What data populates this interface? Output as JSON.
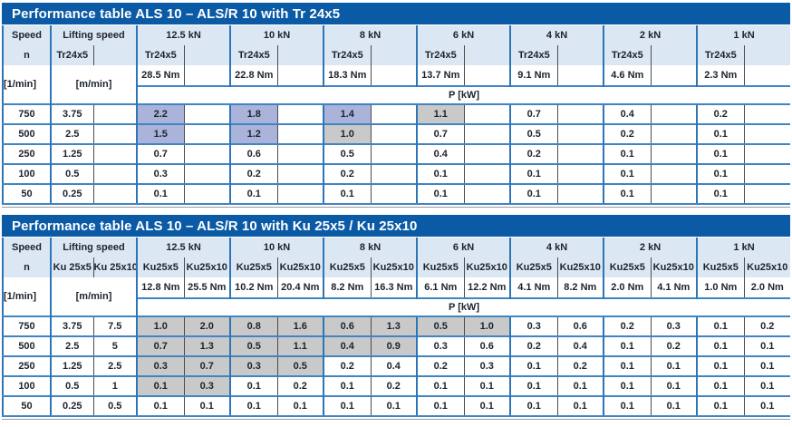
{
  "colors": {
    "title_bar": "#0b5aa5",
    "header_bg": "#dbe8f4",
    "group_border": "#2e75b6",
    "row_line": "#3f85c4",
    "highlight_blue": "#aab4da",
    "highlight_gray": "#c9c9c9",
    "text": "#1d232c"
  },
  "tables": [
    {
      "title": "Performance table ALS 10 – ALS/R 10 with Tr 24x5",
      "speed_label": "Speed",
      "speed_sub": "n",
      "speed_unit": "[1/min]",
      "lifting_label": "Lifting speed",
      "lifting_subs": [
        "Tr24x5",
        ""
      ],
      "lifting_unit": "[m/min]",
      "p_unit": "P [kW]",
      "groups": [
        {
          "load": "12.5 kN",
          "subs": [
            "Tr24x5",
            ""
          ],
          "torques": [
            "28.5 Nm",
            ""
          ]
        },
        {
          "load": "10 kN",
          "subs": [
            "Tr24x5",
            ""
          ],
          "torques": [
            "22.8 Nm",
            ""
          ]
        },
        {
          "load": "8 kN",
          "subs": [
            "Tr24x5",
            ""
          ],
          "torques": [
            "18.3 Nm",
            ""
          ]
        },
        {
          "load": "6 kN",
          "subs": [
            "Tr24x5",
            ""
          ],
          "torques": [
            "13.7 Nm",
            ""
          ]
        },
        {
          "load": "4 kN",
          "subs": [
            "Tr24x5",
            ""
          ],
          "torques": [
            "9.1 Nm",
            ""
          ]
        },
        {
          "load": "2 kN",
          "subs": [
            "Tr24x5",
            ""
          ],
          "torques": [
            "4.6 Nm",
            ""
          ]
        },
        {
          "load": "1 kN",
          "subs": [
            "Tr24x5",
            ""
          ],
          "torques": [
            "2.3 Nm",
            ""
          ]
        }
      ],
      "rows": [
        {
          "speed": "750",
          "lifting": [
            "3.75",
            ""
          ],
          "p": [
            [
              "2.2",
              ""
            ],
            [
              "1.8",
              ""
            ],
            [
              "1.4",
              ""
            ],
            [
              "1.1",
              ""
            ],
            [
              "0.7",
              ""
            ],
            [
              "0.4",
              ""
            ],
            [
              "0.2",
              ""
            ]
          ],
          "hl": [
            [
              "blue",
              ""
            ],
            [
              "blue",
              ""
            ],
            [
              "blue",
              ""
            ],
            [
              "gray",
              ""
            ],
            [
              "",
              ""
            ],
            [
              "",
              ""
            ],
            [
              "",
              ""
            ]
          ]
        },
        {
          "speed": "500",
          "lifting": [
            "2.5",
            ""
          ],
          "p": [
            [
              "1.5",
              ""
            ],
            [
              "1.2",
              ""
            ],
            [
              "1.0",
              ""
            ],
            [
              "0.7",
              ""
            ],
            [
              "0.5",
              ""
            ],
            [
              "0.2",
              ""
            ],
            [
              "0.1",
              ""
            ]
          ],
          "hl": [
            [
              "blue",
              ""
            ],
            [
              "blue",
              ""
            ],
            [
              "gray",
              ""
            ],
            [
              "",
              ""
            ],
            [
              "",
              ""
            ],
            [
              "",
              ""
            ],
            [
              "",
              ""
            ]
          ]
        },
        {
          "speed": "250",
          "lifting": [
            "1.25",
            ""
          ],
          "p": [
            [
              "0.7",
              ""
            ],
            [
              "0.6",
              ""
            ],
            [
              "0.5",
              ""
            ],
            [
              "0.4",
              ""
            ],
            [
              "0.2",
              ""
            ],
            [
              "0.1",
              ""
            ],
            [
              "0.1",
              ""
            ]
          ],
          "hl": [
            [
              "",
              ""
            ],
            [
              "",
              ""
            ],
            [
              "",
              ""
            ],
            [
              "",
              ""
            ],
            [
              "",
              ""
            ],
            [
              "",
              ""
            ],
            [
              "",
              ""
            ]
          ]
        },
        {
          "speed": "100",
          "lifting": [
            "0.5",
            ""
          ],
          "p": [
            [
              "0.3",
              ""
            ],
            [
              "0.2",
              ""
            ],
            [
              "0.2",
              ""
            ],
            [
              "0.1",
              ""
            ],
            [
              "0.1",
              ""
            ],
            [
              "0.1",
              ""
            ],
            [
              "0.1",
              ""
            ]
          ],
          "hl": [
            [
              "",
              ""
            ],
            [
              "",
              ""
            ],
            [
              "",
              ""
            ],
            [
              "",
              ""
            ],
            [
              "",
              ""
            ],
            [
              "",
              ""
            ],
            [
              "",
              ""
            ]
          ]
        },
        {
          "speed": "50",
          "lifting": [
            "0.25",
            ""
          ],
          "p": [
            [
              "0.1",
              ""
            ],
            [
              "0.1",
              ""
            ],
            [
              "0.1",
              ""
            ],
            [
              "0.1",
              ""
            ],
            [
              "0.1",
              ""
            ],
            [
              "0.1",
              ""
            ],
            [
              "0.1",
              ""
            ]
          ],
          "hl": [
            [
              "",
              ""
            ],
            [
              "",
              ""
            ],
            [
              "",
              ""
            ],
            [
              "",
              ""
            ],
            [
              "",
              ""
            ],
            [
              "",
              ""
            ],
            [
              "",
              ""
            ]
          ]
        }
      ]
    },
    {
      "title": "Performance table ALS 10 – ALS/R 10 with Ku 25x5 / Ku 25x10",
      "speed_label": "Speed",
      "speed_sub": "n",
      "speed_unit": "[1/min]",
      "lifting_label": "Lifting speed",
      "lifting_subs": [
        "Ku 25x5",
        "Ku 25x10"
      ],
      "lifting_unit": "[m/min]",
      "p_unit": "P [kW]",
      "groups": [
        {
          "load": "12.5 kN",
          "subs": [
            "Ku25x5",
            "Ku25x10"
          ],
          "torques": [
            "12.8 Nm",
            "25.5 Nm"
          ]
        },
        {
          "load": "10 kN",
          "subs": [
            "Ku25x5",
            "Ku25x10"
          ],
          "torques": [
            "10.2 Nm",
            "20.4 Nm"
          ]
        },
        {
          "load": "8 kN",
          "subs": [
            "Ku25x5",
            "Ku25x10"
          ],
          "torques": [
            "8.2 Nm",
            "16.3 Nm"
          ]
        },
        {
          "load": "6 kN",
          "subs": [
            "Ku25x5",
            "Ku25x10"
          ],
          "torques": [
            "6.1 Nm",
            "12.2 Nm"
          ]
        },
        {
          "load": "4 kN",
          "subs": [
            "Ku25x5",
            "Ku25x10"
          ],
          "torques": [
            "4.1 Nm",
            "8.2 Nm"
          ]
        },
        {
          "load": "2 kN",
          "subs": [
            "Ku25x5",
            "Ku25x10"
          ],
          "torques": [
            "2.0 Nm",
            "4.1 Nm"
          ]
        },
        {
          "load": "1 kN",
          "subs": [
            "Ku25x5",
            "Ku25x10"
          ],
          "torques": [
            "1.0 Nm",
            "2.0 Nm"
          ]
        }
      ],
      "rows": [
        {
          "speed": "750",
          "lifting": [
            "3.75",
            "7.5"
          ],
          "p": [
            [
              "1.0",
              "2.0"
            ],
            [
              "0.8",
              "1.6"
            ],
            [
              "0.6",
              "1.3"
            ],
            [
              "0.5",
              "1.0"
            ],
            [
              "0.3",
              "0.6"
            ],
            [
              "0.2",
              "0.3"
            ],
            [
              "0.1",
              "0.2"
            ]
          ],
          "hl": [
            [
              "gray",
              "gray"
            ],
            [
              "gray",
              "gray"
            ],
            [
              "gray",
              "gray"
            ],
            [
              "gray",
              "gray"
            ],
            [
              "",
              ""
            ],
            [
              "",
              ""
            ],
            [
              "",
              ""
            ]
          ]
        },
        {
          "speed": "500",
          "lifting": [
            "2.5",
            "5"
          ],
          "p": [
            [
              "0.7",
              "1.3"
            ],
            [
              "0.5",
              "1.1"
            ],
            [
              "0.4",
              "0.9"
            ],
            [
              "0.3",
              "0.6"
            ],
            [
              "0.2",
              "0.4"
            ],
            [
              "0.1",
              "0.2"
            ],
            [
              "0.1",
              "0.1"
            ]
          ],
          "hl": [
            [
              "gray",
              "gray"
            ],
            [
              "gray",
              "gray"
            ],
            [
              "gray",
              "gray"
            ],
            [
              "",
              ""
            ],
            [
              "",
              ""
            ],
            [
              "",
              ""
            ],
            [
              "",
              ""
            ]
          ]
        },
        {
          "speed": "250",
          "lifting": [
            "1.25",
            "2.5"
          ],
          "p": [
            [
              "0.3",
              "0.7"
            ],
            [
              "0.3",
              "0.5"
            ],
            [
              "0.2",
              "0.4"
            ],
            [
              "0.2",
              "0.3"
            ],
            [
              "0.1",
              "0.2"
            ],
            [
              "0.1",
              "0.1"
            ],
            [
              "0.1",
              "0.1"
            ]
          ],
          "hl": [
            [
              "gray",
              "gray"
            ],
            [
              "gray",
              "gray"
            ],
            [
              "",
              ""
            ],
            [
              "",
              ""
            ],
            [
              "",
              ""
            ],
            [
              "",
              ""
            ],
            [
              "",
              ""
            ]
          ]
        },
        {
          "speed": "100",
          "lifting": [
            "0.5",
            "1"
          ],
          "p": [
            [
              "0.1",
              "0.3"
            ],
            [
              "0.1",
              "0.2"
            ],
            [
              "0.1",
              "0.2"
            ],
            [
              "0.1",
              "0.1"
            ],
            [
              "0.1",
              "0.1"
            ],
            [
              "0.1",
              "0.1"
            ],
            [
              "0.1",
              "0.1"
            ]
          ],
          "hl": [
            [
              "gray",
              "gray"
            ],
            [
              "",
              ""
            ],
            [
              "",
              ""
            ],
            [
              "",
              ""
            ],
            [
              "",
              ""
            ],
            [
              "",
              ""
            ],
            [
              "",
              ""
            ]
          ]
        },
        {
          "speed": "50",
          "lifting": [
            "0.25",
            "0.5"
          ],
          "p": [
            [
              "0.1",
              "0.1"
            ],
            [
              "0.1",
              "0.1"
            ],
            [
              "0.1",
              "0.1"
            ],
            [
              "0.1",
              "0.1"
            ],
            [
              "0.1",
              "0.1"
            ],
            [
              "0.1",
              "0.1"
            ],
            [
              "0.1",
              "0.1"
            ]
          ],
          "hl": [
            [
              "",
              ""
            ],
            [
              "",
              ""
            ],
            [
              "",
              ""
            ],
            [
              "",
              ""
            ],
            [
              "",
              ""
            ],
            [
              "",
              ""
            ],
            [
              "",
              ""
            ]
          ]
        }
      ]
    }
  ]
}
